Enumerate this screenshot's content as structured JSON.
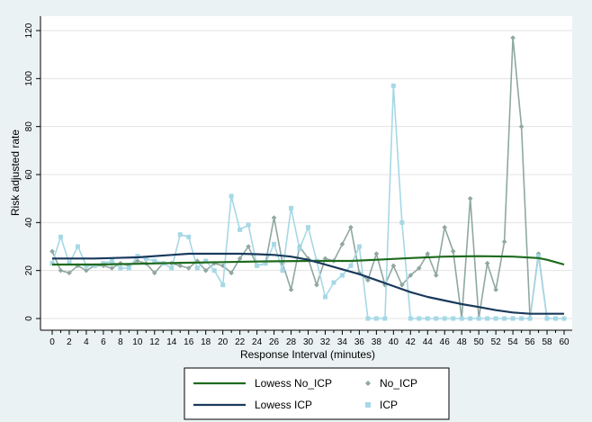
{
  "chart_data": {
    "type": "line",
    "xlabel": "Response Interval (minutes)",
    "ylabel": "Risk adjusted rate",
    "xlim": [
      0,
      60
    ],
    "ylim": [
      0,
      120
    ],
    "x_ticks": [
      0,
      2,
      4,
      6,
      8,
      10,
      12,
      14,
      16,
      18,
      20,
      22,
      24,
      26,
      28,
      30,
      32,
      34,
      36,
      38,
      40,
      42,
      44,
      46,
      48,
      50,
      52,
      54,
      56,
      58,
      60
    ],
    "y_ticks": [
      0,
      20,
      40,
      60,
      80,
      100,
      120
    ],
    "grid": "horizontal",
    "legend_position": "bottom",
    "series": [
      {
        "name": "Lowess No_ICP",
        "kind": "line",
        "color": "#1e6b1e",
        "x": [
          0,
          5,
          10,
          15,
          20,
          25,
          30,
          33,
          35,
          38,
          42,
          46,
          50,
          54,
          57,
          58,
          59,
          60
        ],
        "y": [
          22.5,
          22.5,
          22.8,
          23.2,
          23.5,
          23.8,
          24.0,
          24.0,
          24.0,
          24.5,
          25.2,
          25.8,
          26.0,
          25.8,
          25.2,
          24.5,
          23.5,
          22.5
        ]
      },
      {
        "name": "Lowess ICP",
        "kind": "line",
        "color": "#1a3a5c",
        "x": [
          0,
          5,
          10,
          14,
          16,
          18,
          20,
          22,
          24,
          26,
          28,
          30,
          32,
          34,
          36,
          38,
          40,
          42,
          44,
          46,
          48,
          50,
          52,
          54,
          56,
          58,
          60
        ],
        "y": [
          25.0,
          25.0,
          25.5,
          26.5,
          27.0,
          27.0,
          27.0,
          27.0,
          26.8,
          26.5,
          25.8,
          24.5,
          22.5,
          20.5,
          18.5,
          16.0,
          13.5,
          11.0,
          9.0,
          7.5,
          6.0,
          4.8,
          3.5,
          2.5,
          2.0,
          2.0,
          2.0
        ]
      },
      {
        "name": "No_ICP",
        "kind": "connected",
        "color": "#8fa8a1",
        "x": [
          0,
          1,
          2,
          3,
          4,
          5,
          6,
          7,
          8,
          9,
          10,
          11,
          12,
          13,
          14,
          15,
          16,
          17,
          18,
          19,
          20,
          21,
          22,
          23,
          24,
          25,
          26,
          27,
          28,
          29,
          30,
          31,
          32,
          33,
          34,
          35,
          36,
          37,
          38,
          39,
          40,
          41,
          42,
          43,
          44,
          45,
          46,
          47,
          48,
          49,
          50,
          51,
          52,
          53,
          54,
          55,
          56,
          57,
          58
        ],
        "y": [
          28,
          20,
          19,
          22,
          20,
          22,
          22,
          21,
          23,
          22,
          24,
          23,
          19,
          23,
          23,
          22,
          21,
          24,
          20,
          23,
          22,
          19,
          25,
          30,
          22,
          23,
          42,
          23,
          12,
          30,
          25,
          14,
          25,
          24,
          31,
          38,
          19,
          16,
          27,
          14,
          22,
          14,
          18,
          21,
          27,
          18,
          38,
          28,
          0,
          50,
          0,
          23,
          12,
          32,
          117,
          80,
          0,
          27,
          0
        ]
      },
      {
        "name": "ICP",
        "kind": "connected",
        "color": "#a6d8e6",
        "x": [
          0,
          1,
          2,
          3,
          4,
          5,
          6,
          7,
          8,
          9,
          10,
          11,
          12,
          13,
          14,
          15,
          16,
          17,
          18,
          19,
          20,
          21,
          22,
          23,
          24,
          25,
          26,
          27,
          28,
          29,
          30,
          31,
          32,
          33,
          34,
          35,
          36,
          37,
          38,
          39,
          40,
          41,
          42,
          43,
          44,
          45,
          46,
          47,
          48,
          49,
          50,
          51,
          52,
          53,
          54,
          55,
          56,
          57,
          58,
          59,
          60
        ],
        "y": [
          23,
          34,
          23,
          30,
          22,
          22,
          23,
          24,
          21,
          21,
          26,
          25,
          24,
          23,
          21,
          35,
          34,
          21,
          24,
          20,
          14,
          51,
          37,
          39,
          22,
          23,
          31,
          20,
          46,
          29,
          38,
          24,
          9,
          15,
          18,
          22,
          30,
          0,
          0,
          0,
          97,
          40,
          0,
          0,
          0,
          0,
          0,
          0,
          0,
          0,
          0,
          0,
          0,
          0,
          0,
          0,
          0,
          26,
          0,
          0,
          0
        ]
      }
    ]
  }
}
